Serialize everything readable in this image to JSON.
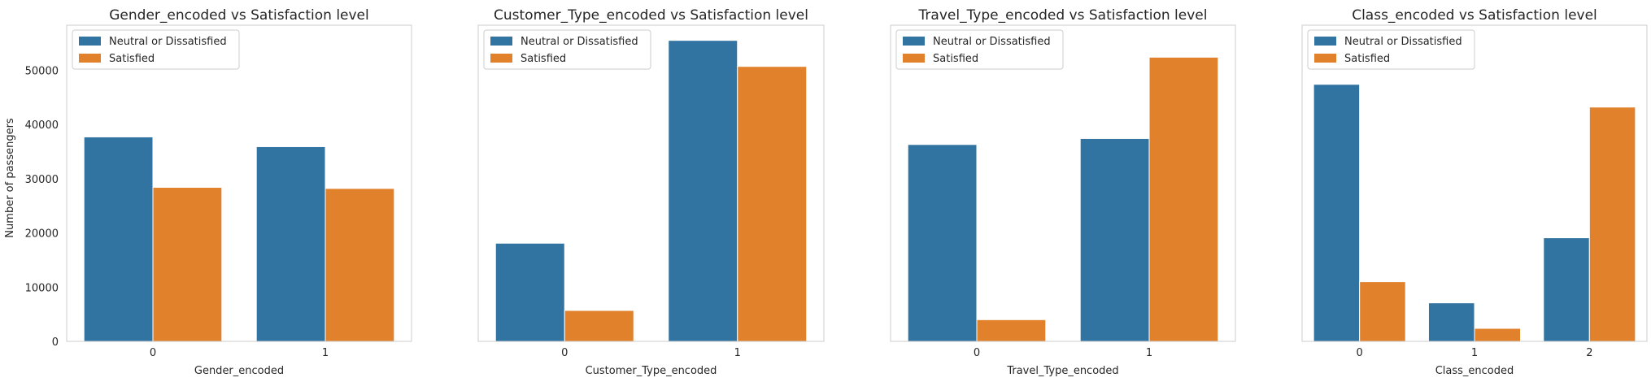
{
  "colors": {
    "series0": "#3274a1",
    "series1": "#e1812c",
    "frame": "#cccccc",
    "text": "#262626"
  },
  "shared_ylabel": "Number of passengers",
  "chart_data": [
    {
      "type": "bar",
      "title": "Gender_encoded vs Satisfaction level",
      "xlabel": "Gender_encoded",
      "ylabel": "Number of passengers",
      "categories": [
        "0",
        "1"
      ],
      "series": [
        {
          "name": "Neutral or Dissatisfied",
          "values": [
            37700,
            35900
          ]
        },
        {
          "name": "Satisfied",
          "values": [
            28400,
            28200
          ]
        }
      ],
      "ylim": [
        0,
        58300
      ],
      "yticks": [
        0,
        10000,
        20000,
        30000,
        40000,
        50000
      ],
      "show_ytick_labels": true,
      "legend": "top-left",
      "grid": false
    },
    {
      "type": "bar",
      "title": "Customer_Type_encoded vs Satisfaction level",
      "xlabel": "Customer_Type_encoded",
      "ylabel": "",
      "categories": [
        "0",
        "1"
      ],
      "series": [
        {
          "name": "Neutral or Dissatisfied",
          "values": [
            18100,
            55500
          ]
        },
        {
          "name": "Satisfied",
          "values": [
            5700,
            50700
          ]
        }
      ],
      "ylim": [
        0,
        58300
      ],
      "yticks": [
        0,
        10000,
        20000,
        30000,
        40000,
        50000
      ],
      "show_ytick_labels": false,
      "legend": "top-left",
      "grid": false
    },
    {
      "type": "bar",
      "title": "Travel_Type_encoded vs Satisfaction level",
      "xlabel": "Travel_Type_encoded",
      "ylabel": "",
      "categories": [
        "0",
        "1"
      ],
      "series": [
        {
          "name": "Neutral or Dissatisfied",
          "values": [
            36300,
            37400
          ]
        },
        {
          "name": "Satisfied",
          "values": [
            4000,
            52400
          ]
        }
      ],
      "ylim": [
        0,
        58300
      ],
      "yticks": [
        0,
        10000,
        20000,
        30000,
        40000,
        50000
      ],
      "show_ytick_labels": false,
      "legend": "top-left",
      "grid": false
    },
    {
      "type": "bar",
      "title": "Class_encoded vs Satisfaction level",
      "xlabel": "Class_encoded",
      "ylabel": "",
      "categories": [
        "0",
        "1",
        "2"
      ],
      "series": [
        {
          "name": "Neutral or Dissatisfied",
          "values": [
            47400,
            7100,
            19100
          ]
        },
        {
          "name": "Satisfied",
          "values": [
            11000,
            2400,
            43200
          ]
        }
      ],
      "ylim": [
        0,
        58300
      ],
      "yticks": [
        0,
        10000,
        20000,
        30000,
        40000,
        50000
      ],
      "show_ytick_labels": false,
      "legend": "top-left",
      "grid": false
    }
  ]
}
